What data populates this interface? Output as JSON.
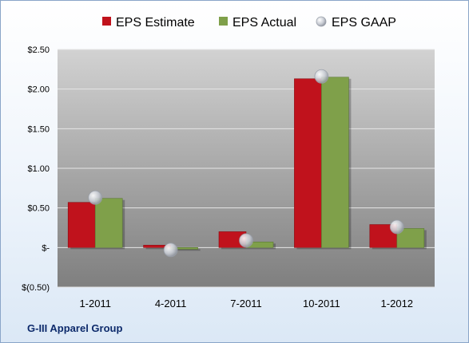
{
  "chart_data": {
    "type": "bar",
    "categories": [
      "1-2011",
      "4-2011",
      "7-2011",
      "10-2011",
      "1-2012"
    ],
    "series": [
      {
        "name": "EPS Estimate",
        "type": "bar",
        "color": "#c0121c",
        "values": [
          0.57,
          0.03,
          0.2,
          2.13,
          0.29
        ]
      },
      {
        "name": "EPS Actual",
        "type": "bar",
        "color": "#7fa04a",
        "values": [
          0.62,
          -0.02,
          0.07,
          2.15,
          0.24
        ]
      },
      {
        "name": "EPS GAAP",
        "type": "scatter",
        "color": "#b8bcc4",
        "values": [
          0.63,
          -0.03,
          0.09,
          2.16,
          0.26
        ]
      }
    ],
    "yticks": [
      "$(0.50)",
      "$-",
      "$0.50",
      "$1.00",
      "$1.50",
      "$2.00",
      "$2.50"
    ],
    "ylim": [
      -0.5,
      2.5
    ],
    "legend_position": "top",
    "grid": true,
    "footer": "G-III Apparel Group"
  }
}
